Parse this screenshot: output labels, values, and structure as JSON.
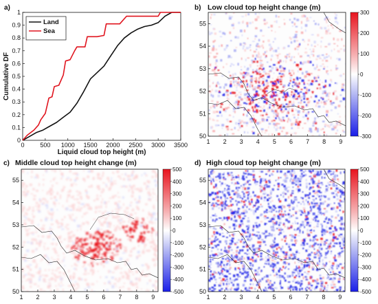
{
  "chart_data": [
    {
      "panel": "a)",
      "type": "line",
      "title": "",
      "xlabel": "Liquid cloud top height (m)",
      "ylabel": "Cumulative DF",
      "xlim": [
        0,
        3500
      ],
      "ylim": [
        0,
        1
      ],
      "x_ticks": [
        "0",
        "500",
        "1000",
        "1500",
        "2000",
        "2500",
        "3000",
        "3500"
      ],
      "y_ticks": [
        "0",
        "0.1",
        "0.2",
        "0.3",
        "0.4",
        "0.5",
        "0.6",
        "0.7",
        "0.8",
        "0.9",
        "1"
      ],
      "legend_position": "top-left",
      "series": [
        {
          "name": "Land",
          "color": "#111111",
          "x": [
            0,
            150,
            300,
            450,
            600,
            750,
            900,
            1050,
            1200,
            1350,
            1500,
            1650,
            1800,
            1950,
            2100,
            2250,
            2400,
            2550,
            2700,
            2850,
            3000,
            3150,
            3300,
            3500
          ],
          "y": [
            0,
            0.03,
            0.06,
            0.08,
            0.11,
            0.14,
            0.18,
            0.22,
            0.29,
            0.38,
            0.48,
            0.53,
            0.58,
            0.66,
            0.74,
            0.8,
            0.84,
            0.87,
            0.89,
            0.9,
            0.92,
            0.97,
            1.0,
            1.0
          ]
        },
        {
          "name": "Sea",
          "color": "#e0141e",
          "x": [
            0,
            100,
            250,
            350,
            400,
            500,
            580,
            650,
            700,
            800,
            900,
            950,
            1050,
            1150,
            1200,
            1380,
            1430,
            1650,
            1800,
            1850,
            2150,
            2300,
            3000,
            3050,
            3100,
            3500
          ],
          "y": [
            0,
            0.04,
            0.08,
            0.12,
            0.16,
            0.21,
            0.33,
            0.34,
            0.42,
            0.43,
            0.51,
            0.62,
            0.63,
            0.7,
            0.73,
            0.73,
            0.81,
            0.81,
            0.82,
            0.91,
            0.91,
            0.97,
            0.97,
            1.0,
            1.0,
            1.0
          ]
        }
      ]
    },
    {
      "panel": "b)",
      "type": "heatmap",
      "title": "Low cloud top height change (m)",
      "xlim": [
        1,
        9.3
      ],
      "ylim": [
        50,
        55.5
      ],
      "x_ticks": [
        "1",
        "2",
        "3",
        "4",
        "5",
        "6",
        "7",
        "8",
        "9"
      ],
      "y_ticks": [
        "50",
        "51",
        "52",
        "53",
        "54",
        "55"
      ],
      "colorbar_range": [
        -300,
        300
      ],
      "colorbar_ticks": [
        "300",
        "200",
        "100",
        "0",
        "-100",
        "-200",
        "-300"
      ]
    },
    {
      "panel": "c)",
      "type": "heatmap",
      "title": "Middle cloud top height change (m)",
      "xlim": [
        1,
        9.3
      ],
      "ylim": [
        50,
        55.5
      ],
      "x_ticks": [
        "1",
        "2",
        "3",
        "4",
        "5",
        "6",
        "7",
        "8",
        "9"
      ],
      "y_ticks": [
        "50",
        "51",
        "52",
        "53",
        "54",
        "55"
      ],
      "colorbar_range": [
        -500,
        500
      ],
      "colorbar_ticks": [
        "500",
        "400",
        "300",
        "200",
        "100",
        "0",
        "-100",
        "-200",
        "-300",
        "-400",
        "-500"
      ]
    },
    {
      "panel": "d)",
      "type": "heatmap",
      "title": "High cloud top height change (m)",
      "xlim": [
        1,
        9.3
      ],
      "ylim": [
        50,
        55.5
      ],
      "x_ticks": [
        "1",
        "2",
        "3",
        "4",
        "5",
        "6",
        "7",
        "8",
        "9"
      ],
      "y_ticks": [
        "50",
        "51",
        "52",
        "53",
        "54",
        "55"
      ],
      "colorbar_range": [
        -500,
        500
      ],
      "colorbar_ticks": [
        "500",
        "400",
        "300",
        "200",
        "100",
        "0",
        "-100",
        "-200",
        "-300",
        "-400",
        "-500"
      ]
    }
  ]
}
